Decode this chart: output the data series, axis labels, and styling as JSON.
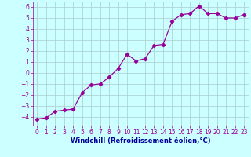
{
  "x": [
    0,
    1,
    2,
    3,
    4,
    5,
    6,
    7,
    8,
    9,
    10,
    11,
    12,
    13,
    14,
    15,
    16,
    17,
    18,
    19,
    20,
    21,
    22,
    23
  ],
  "y": [
    -4.2,
    -4.1,
    -3.5,
    -3.4,
    -3.3,
    -1.8,
    -1.1,
    -1.0,
    -0.4,
    0.4,
    1.7,
    1.1,
    1.3,
    2.5,
    2.6,
    4.7,
    5.3,
    5.4,
    6.1,
    5.4,
    5.4,
    5.0,
    5.0,
    5.3
  ],
  "line_color": "#990099",
  "marker": "D",
  "marker_size": 2.2,
  "bg_color": "#ccffff",
  "grid_color": "#aacccc",
  "xlabel": "Windchill (Refroidissement éolien,°C)",
  "xlabel_color": "#000099",
  "xlim": [
    -0.5,
    23.5
  ],
  "ylim": [
    -4.8,
    6.5
  ],
  "yticks": [
    -4,
    -3,
    -2,
    -1,
    0,
    1,
    2,
    3,
    4,
    5,
    6
  ],
  "xticks": [
    0,
    1,
    2,
    3,
    4,
    5,
    6,
    7,
    8,
    9,
    10,
    11,
    12,
    13,
    14,
    15,
    16,
    17,
    18,
    19,
    20,
    21,
    22,
    23
  ],
  "tick_color": "#990099",
  "label_fontsize": 6.0,
  "tick_fontsize": 5.5
}
